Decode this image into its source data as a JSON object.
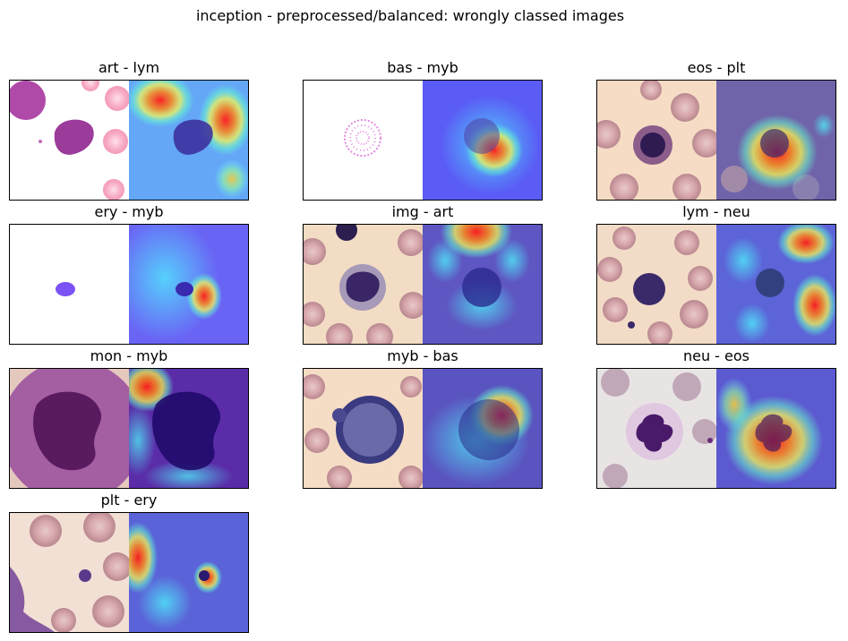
{
  "figure": {
    "title": "inception - preprocessed/balanced: wrongly classed images"
  },
  "panels": [
    {
      "title": "art - lym",
      "bg": "#ffffff",
      "cell": "lymphocyte",
      "heat": "top-center and right"
    },
    {
      "title": "bas - myb",
      "bg": "#ffffff",
      "cell": "faint speckled cell",
      "heat": "center-right"
    },
    {
      "title": "eos - plt",
      "bg": "#f6dcc4",
      "cell": "eosinophil",
      "heat": "center"
    },
    {
      "title": "ery - myb",
      "bg": "#ffffff",
      "cell": "small violet cell",
      "heat": "center-right"
    },
    {
      "title": "img - art",
      "bg": "#f2dcc4",
      "cell": "immature granulocyte",
      "heat": "top"
    },
    {
      "title": "lym - neu",
      "bg": "#f3dcc7",
      "cell": "lymphocyte",
      "heat": "top-right and bottom-right"
    },
    {
      "title": "mon - myb",
      "bg": "#e9c6c6",
      "cell": "monocyte (zoomed)",
      "heat": "top-left"
    },
    {
      "title": "myb - bas",
      "bg": "#f5dcc4",
      "cell": "myeloblast",
      "heat": "top-right"
    },
    {
      "title": "neu - eos",
      "bg": "#e8e4e4",
      "cell": "neutrophil",
      "heat": "center"
    },
    {
      "title": "plt - ery",
      "bg": "#f3e0d4",
      "cell": "platelet",
      "heat": "left"
    }
  ]
}
